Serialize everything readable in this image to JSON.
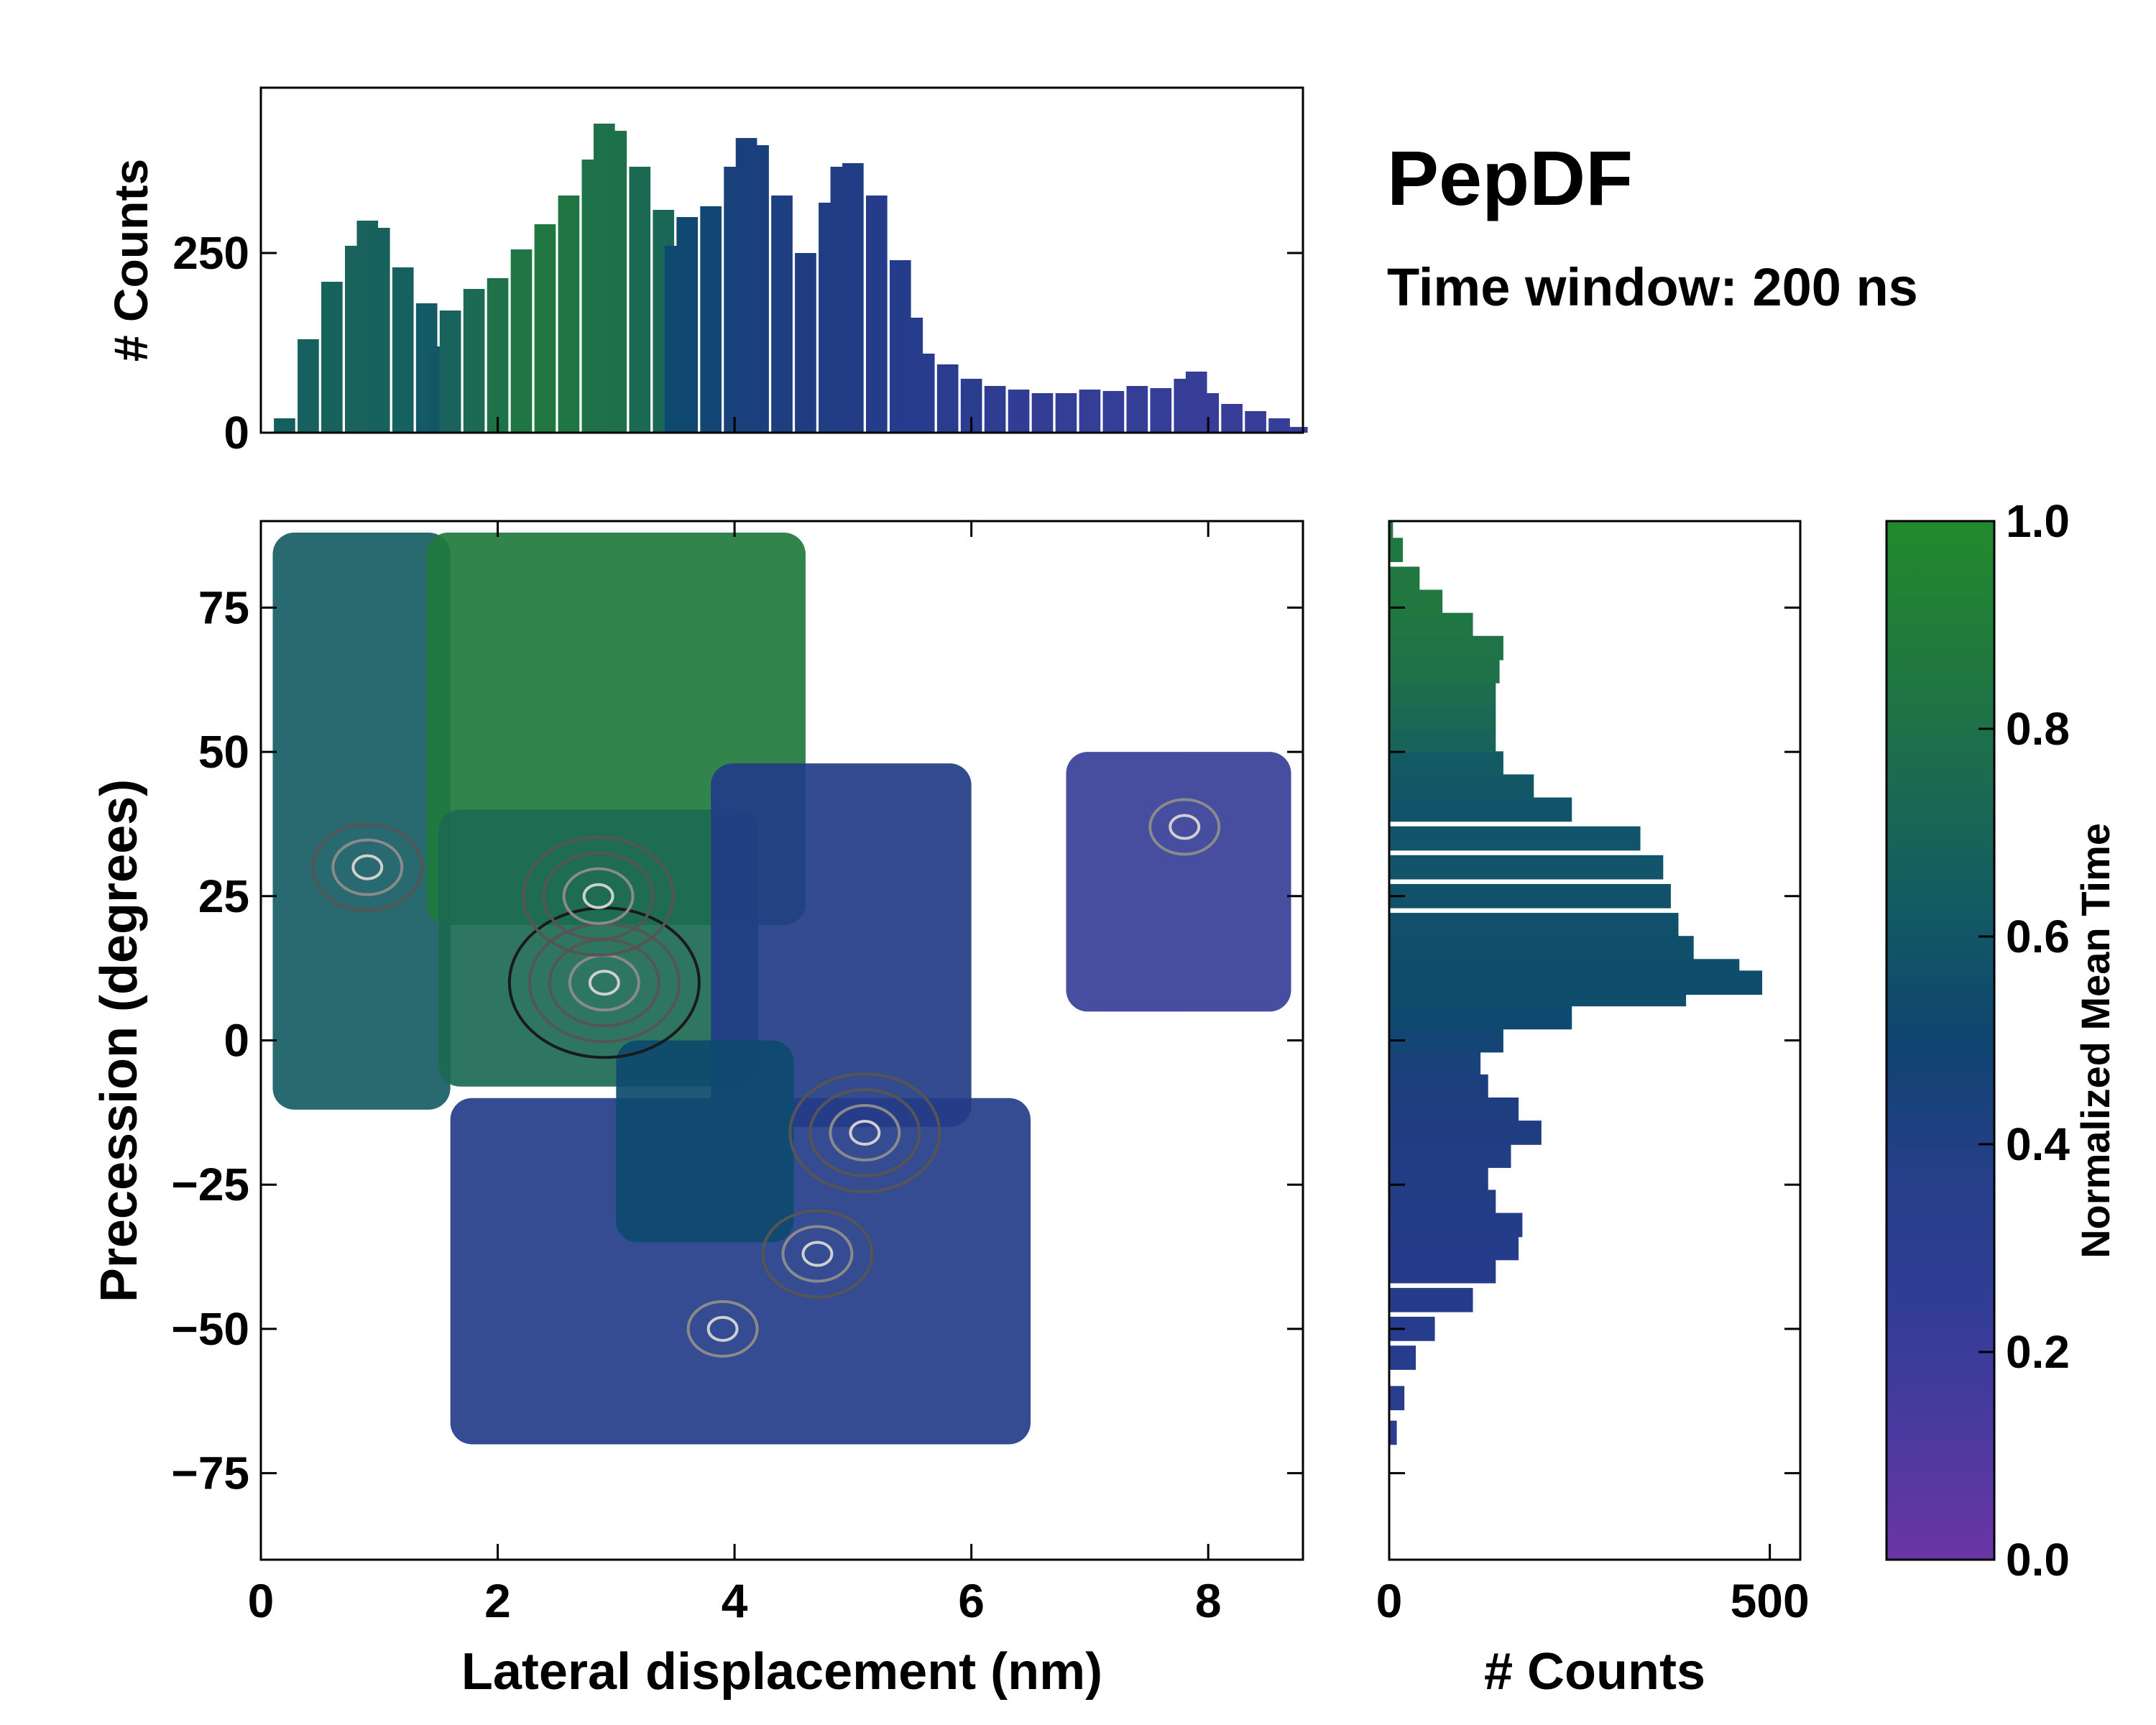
{
  "chart_data": [
    {
      "type": "heatmap",
      "title": "",
      "xlabel": "Lateral displacement (nm)",
      "ylabel": "Precession (degrees)",
      "xlim": [
        0,
        8.8
      ],
      "ylim": [
        -90,
        90
      ],
      "xticks": [
        0,
        2,
        4,
        6,
        8
      ],
      "xtick_labels": [
        "0",
        "2",
        "4",
        "6",
        "8"
      ],
      "yticks": [
        75,
        50,
        25,
        0,
        -25,
        -50,
        -75
      ],
      "ytick_labels": [
        "75",
        "50",
        "25",
        "0",
        "−25",
        "−50",
        "−75"
      ],
      "grid": false,
      "value_meaning": "Normalized Mean Time (0-1)",
      "regions": [
        {
          "name": "upper-left",
          "x_range": [
            0.1,
            1.6
          ],
          "y_range": [
            -12,
            88
          ],
          "value": 0.62
        },
        {
          "name": "upper-center",
          "x_range": [
            1.4,
            4.6
          ],
          "y_range": [
            20,
            88
          ],
          "value": 0.88
        },
        {
          "name": "center",
          "x_range": [
            1.5,
            4.2
          ],
          "y_range": [
            -8,
            40
          ],
          "value": 0.74
        },
        {
          "name": "middle-right",
          "x_range": [
            3.8,
            6.0
          ],
          "y_range": [
            -15,
            48
          ],
          "value": 0.3
        },
        {
          "name": "right-lobe",
          "x_range": [
            6.8,
            8.7
          ],
          "y_range": [
            5,
            50
          ],
          "value": 0.15
        },
        {
          "name": "lower-center",
          "x_range": [
            1.6,
            6.5
          ],
          "y_range": [
            -70,
            -10
          ],
          "value": 0.28
        },
        {
          "name": "lower-left-center",
          "x_range": [
            3.0,
            4.5
          ],
          "y_range": [
            -35,
            0
          ],
          "value": 0.5
        }
      ],
      "density_hotspots": [
        {
          "x": 2.9,
          "y": 10,
          "level": 1.0
        },
        {
          "x": 2.85,
          "y": 25,
          "level": 0.8
        },
        {
          "x": 5.1,
          "y": -16,
          "level": 0.75
        },
        {
          "x": 4.7,
          "y": -37,
          "level": 0.6
        },
        {
          "x": 0.9,
          "y": 30,
          "level": 0.6
        },
        {
          "x": 7.8,
          "y": 37,
          "level": 0.45
        },
        {
          "x": 3.9,
          "y": -50,
          "level": 0.45
        }
      ]
    },
    {
      "type": "bar",
      "title": "",
      "xlabel": "",
      "ylabel": "# Counts",
      "xlim": [
        0,
        8.8
      ],
      "ylim": [
        0,
        480
      ],
      "yticks": [
        0,
        250
      ],
      "ytick_labels": [
        "0",
        "250"
      ],
      "x": [
        0.2,
        0.4,
        0.6,
        0.8,
        0.9,
        1.0,
        1.2,
        1.4,
        1.5,
        1.6,
        1.8,
        2.0,
        2.2,
        2.4,
        2.6,
        2.8,
        2.9,
        3.0,
        3.2,
        3.4,
        3.5,
        3.6,
        3.8,
        4.0,
        4.1,
        4.2,
        4.4,
        4.6,
        4.8,
        4.9,
        5.0,
        5.2,
        5.4,
        5.5,
        5.6,
        5.8,
        6.0,
        6.2,
        6.4,
        6.6,
        6.8,
        7.0,
        7.2,
        7.4,
        7.6,
        7.8,
        7.9,
        8.0,
        8.2,
        8.4,
        8.6,
        8.75
      ],
      "values": [
        20,
        130,
        210,
        260,
        295,
        285,
        230,
        180,
        120,
        170,
        200,
        215,
        255,
        290,
        330,
        380,
        430,
        420,
        370,
        310,
        260,
        300,
        315,
        370,
        410,
        400,
        330,
        250,
        320,
        370,
        375,
        330,
        240,
        160,
        110,
        95,
        75,
        65,
        60,
        55,
        55,
        60,
        58,
        65,
        62,
        75,
        85,
        55,
        40,
        30,
        20,
        8
      ],
      "colors": [
        0.63,
        0.64,
        0.66,
        0.67,
        0.67,
        0.66,
        0.64,
        0.6,
        0.58,
        0.67,
        0.74,
        0.8,
        0.84,
        0.86,
        0.84,
        0.8,
        0.8,
        0.79,
        0.73,
        0.7,
        0.5,
        0.48,
        0.46,
        0.42,
        0.4,
        0.39,
        0.37,
        0.34,
        0.32,
        0.31,
        0.3,
        0.28,
        0.26,
        0.25,
        0.24,
        0.23,
        0.22,
        0.2,
        0.19,
        0.18,
        0.17,
        0.16,
        0.16,
        0.16,
        0.16,
        0.16,
        0.15,
        0.15,
        0.15,
        0.15,
        0.15,
        0.15
      ]
    },
    {
      "type": "bar",
      "orientation": "horizontal",
      "title": "",
      "xlabel": "# Counts",
      "ylabel": "",
      "xlim": [
        0,
        540
      ],
      "ylim": [
        -90,
        90
      ],
      "xticks": [
        0,
        500
      ],
      "xtick_labels": [
        "0",
        "500"
      ],
      "y": [
        -68,
        -62,
        -55,
        -50,
        -45,
        -40,
        -36,
        -32,
        -28,
        -24,
        -20,
        -16,
        -12,
        -8,
        -4,
        0,
        4,
        8,
        10,
        12,
        16,
        20,
        25,
        30,
        35,
        40,
        44,
        48,
        52,
        56,
        60,
        64,
        68,
        72,
        76,
        80,
        85,
        88
      ],
      "values": [
        10,
        20,
        35,
        60,
        110,
        140,
        170,
        175,
        140,
        130,
        160,
        200,
        170,
        130,
        120,
        150,
        240,
        390,
        490,
        460,
        400,
        380,
        370,
        360,
        330,
        240,
        190,
        150,
        140,
        140,
        140,
        145,
        150,
        110,
        70,
        40,
        18,
        5
      ],
      "colors": [
        0.22,
        0.23,
        0.24,
        0.25,
        0.26,
        0.27,
        0.28,
        0.29,
        0.3,
        0.31,
        0.32,
        0.34,
        0.36,
        0.38,
        0.42,
        0.46,
        0.5,
        0.52,
        0.52,
        0.52,
        0.53,
        0.54,
        0.55,
        0.56,
        0.56,
        0.56,
        0.58,
        0.6,
        0.68,
        0.72,
        0.76,
        0.8,
        0.82,
        0.84,
        0.86,
        0.86,
        0.85,
        0.85
      ]
    }
  ],
  "text": {
    "title": "PepDF",
    "subtitle": "Time window: 200 ns",
    "top_ylabel": "# Counts",
    "right_xlabel": "# Counts",
    "colorbar_label": "Normalized Mean Time",
    "colorbar_ticks": [
      "1.0",
      "0.8",
      "0.6",
      "0.4",
      "0.2",
      "0.0"
    ]
  },
  "colormap": [
    "#6A35A5",
    "#3B3F9A",
    "#263C8C",
    "#1D3E7E",
    "#0E4A6F",
    "#165E62",
    "#1D6B50",
    "#207A3E",
    "#238A2C"
  ]
}
